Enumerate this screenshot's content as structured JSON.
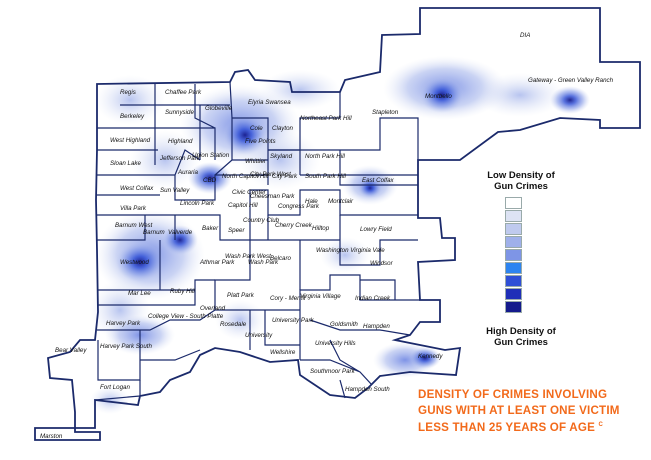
{
  "legend": {
    "low_line1": "Low Density of",
    "low_line2": "Gun Crimes",
    "high_line1": "High Density of",
    "high_line2": "Gun Crimes",
    "ramp_colors": [
      "#ffffff",
      "#dde3f4",
      "#bfcaee",
      "#9fb0ea",
      "#7e95e6",
      "#2d84f0",
      "#2f4fd6",
      "#1f2fb8",
      "#141a8c"
    ]
  },
  "caption": {
    "line1": "DENSITY OF CRIMES INVOLVING",
    "line2": "GUNS WITH AT LEAST ONE VICTIM",
    "line3": "LESS THAN 25 YEARS OF AGE",
    "superscript": "C"
  },
  "colors": {
    "boundary": "#1b2a6b",
    "caption": "#f26a1b",
    "hotspot_core": "#141a8c",
    "hotspot_edge": "#9fb0ea"
  },
  "neighborhoods": {
    "dia": "DIA",
    "gateway": "Gateway - Green Valley Ranch",
    "montbello": "Montbello",
    "stapleton": "Stapleton",
    "regis": "Regis",
    "chaffee_park": "Chaffee Park",
    "globeville": "Globeville",
    "elyria_swansea": "Elyria Swansea",
    "northeast_park_hill": "Northeast Park Hill",
    "berkeley": "Berkeley",
    "sunnyside": "Sunnyside",
    "west_highland": "West Highland",
    "highland": "Highland",
    "five_points": "Five Points",
    "cole": "Cole",
    "clayton": "Clayton",
    "union_station": "Union Station",
    "whittier": "Whittier",
    "skyland": "Skyland",
    "north_park_hill": "North Park Hill",
    "sloan_lake": "Sloan Lake",
    "jefferson_park": "Jefferson Park",
    "auraria": "Auraria",
    "cbd": "CBD",
    "north_capitol_hill": "North Capitol Hill",
    "city_park_west": "City Park West",
    "city_park": "City Park",
    "south_park_hill": "South Park Hill",
    "east_colfax": "East Colfax",
    "west_colfax": "West Colfax",
    "sun_valley": "Sun Valley",
    "civic_center": "Civic Center",
    "lincoln_park": "Lincoln Park",
    "capitol_hill": "Capitol Hill",
    "cheesman_park": "Cheesman Park",
    "congress_park": "Congress Park",
    "hale": "Hale",
    "montclair": "Montclair",
    "villa_park": "Villa Park",
    "barnum_west": "Barnum West",
    "barnum": "Barnum",
    "valverde": "Valverde",
    "baker": "Baker",
    "speer": "Speer",
    "country_club": "Country Club",
    "cherry_creek": "Cherry Creek",
    "hilltop": "Hilltop",
    "lowry_field": "Lowry Field",
    "westwood": "Westwood",
    "athmar_park": "Athmar Park",
    "wash_park_west": "Wash Park West",
    "wash_park": "Wash Park",
    "belcaro": "Belcaro",
    "washington_virginia_vale": "Washington Virginia Vale",
    "windsor": "Windsor",
    "mar_lee": "Mar Lee",
    "ruby_hill": "Ruby Hill",
    "platt_park": "Platt Park",
    "cory_merrill": "Cory - Merrill",
    "virginia_village": "Virginia Village",
    "indian_creek": "Indian Creek",
    "harvey_park": "Harvey Park",
    "college_view": "College View - South Platte",
    "overland": "Overland",
    "rosedale": "Rosedale",
    "university": "University",
    "university_park": "University Park",
    "goldsmith": "Goldsmith",
    "bear_valley": "Bear Valley",
    "harvey_park_south": "Harvey Park South",
    "wellshire": "Wellshire",
    "university_hills": "University Hills",
    "hampden": "Hampden",
    "kennedy": "Kennedy",
    "southmoor_park": "Southmoor Park",
    "hampden_south": "Hampden South",
    "fort_logan": "Fort Logan",
    "marston": "Marston"
  }
}
